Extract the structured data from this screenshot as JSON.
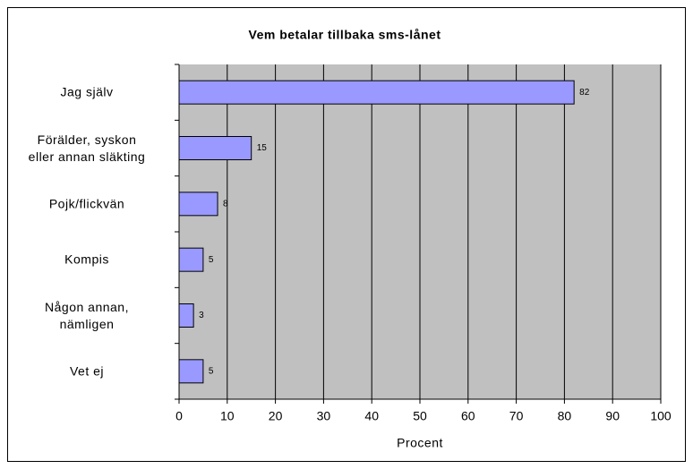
{
  "chart_data": {
    "type": "bar",
    "orientation": "horizontal",
    "title": "Vem betalar tillbaka sms-lånet",
    "categories": [
      "Jag själv",
      "Förälder, syskon\neller annan släkting",
      "Pojk/flickvän",
      "Kompis",
      "Någon annan,\nnämligen",
      "Vet ej"
    ],
    "values": [
      82,
      15,
      8,
      5,
      3,
      5
    ],
    "color": "#9999ff",
    "xlabel": "Procent",
    "xlim": [
      0,
      100
    ],
    "xticks": [
      0,
      10,
      20,
      30,
      40,
      50,
      60,
      70,
      80,
      90,
      100
    ],
    "grid": true
  }
}
